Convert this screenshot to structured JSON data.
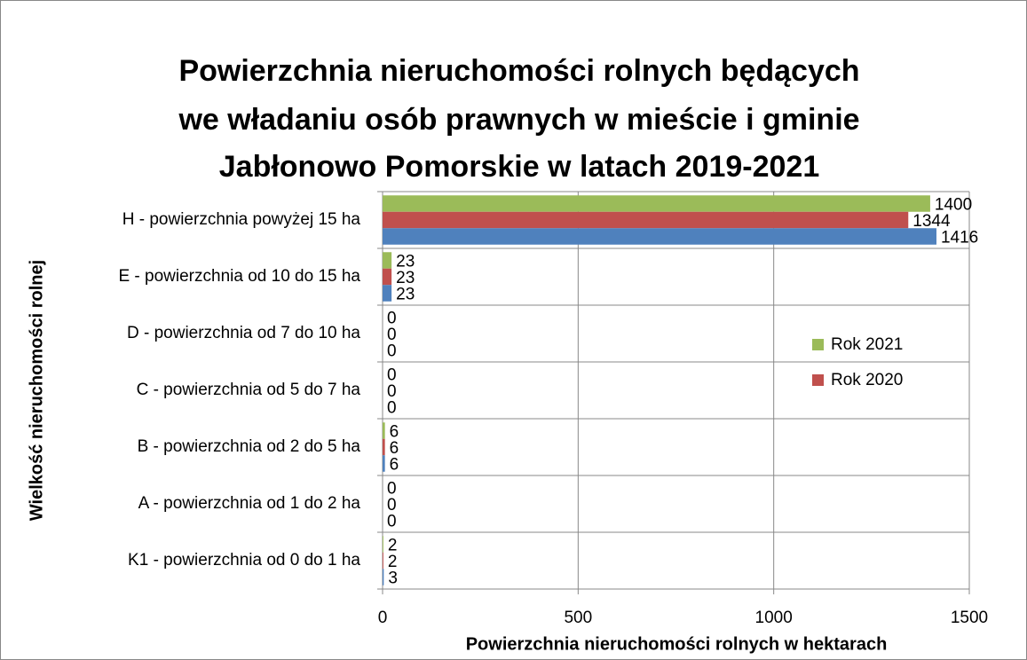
{
  "chart_data": {
    "type": "barh",
    "title": [
      "Powierzchnia nieruchomości rolnych będących",
      "we władaniu osób prawnych w mieście i gminie",
      "Jabłonowo Pomorskie w latach 2019-2021"
    ],
    "x_label": "Powierzchnia nieruchomości rolnych w hektarach",
    "y_label": "Wielkość nieruchomości rolnej",
    "categories": [
      "K1 - powierzchnia od 0 do 1 ha",
      "A - powierzchnia od 1 do 2 ha",
      "B - powierzchnia od 2 do 5 ha",
      "C - powierzchnia od 5 do 7 ha",
      "D - powierzchnia od 7 do 10 ha",
      "E - powierzchnia od 10 do 15 ha",
      "H - powierzchnia powyżej 15 ha"
    ],
    "series": [
      {
        "name": "Rok 2021",
        "color": "#9bbb59",
        "values": [
          2,
          0,
          6,
          0,
          0,
          23,
          1400
        ]
      },
      {
        "name": "Rok 2020",
        "color": "#c0504d",
        "values": [
          2,
          0,
          6,
          0,
          0,
          23,
          1344
        ]
      },
      {
        "color": "#4f81bd",
        "values": [
          3,
          0,
          6,
          0,
          0,
          23,
          1416
        ]
      }
    ],
    "xlim": [
      0,
      1500
    ],
    "xticks": [
      0,
      500,
      1000,
      1500
    ],
    "grid": true,
    "legend": "right"
  }
}
